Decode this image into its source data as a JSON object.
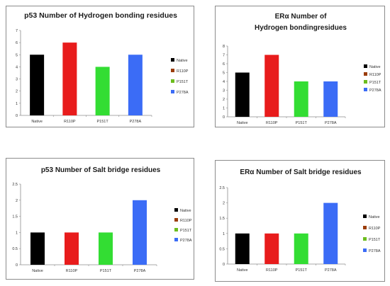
{
  "chart_data": [
    {
      "type": "bar",
      "title": "p53 Number of Hydrogen bonding residues",
      "title_lines": [
        "p53 Number of Hydrogen bonding residues"
      ],
      "categories": [
        "Native",
        "R110P",
        "P151T",
        "P278A"
      ],
      "values": [
        5,
        6,
        4,
        5
      ],
      "colors": [
        "#000000",
        "#e81c1c",
        "#33dd33",
        "#3b6cf6"
      ],
      "legend": [
        "Native",
        "R110P",
        "P151T",
        "P278A"
      ],
      "legend_colors": [
        "#000000",
        "#9b3d0a",
        "#6cbd1e",
        "#3b6cf6"
      ],
      "ylim": [
        0,
        7
      ],
      "yticks": [
        0,
        1,
        2,
        3,
        4,
        5,
        6,
        7
      ],
      "legend_position": "right",
      "grid": false
    },
    {
      "type": "bar",
      "title": "ERα Number of Hydrogen bondingresidues",
      "title_lines": [
        "ERα Number of",
        "Hydrogen bondingresidues"
      ],
      "categories": [
        "Native",
        "R110P",
        "P151T",
        "P278A"
      ],
      "values": [
        5,
        7,
        4,
        4
      ],
      "colors": [
        "#000000",
        "#e81c1c",
        "#33dd33",
        "#3b6cf6"
      ],
      "legend": [
        "Native",
        "R110P",
        "P151T",
        "P278A"
      ],
      "legend_colors": [
        "#000000",
        "#9b3d0a",
        "#6cbd1e",
        "#3b6cf6"
      ],
      "ylim": [
        0,
        8
      ],
      "yticks": [
        0,
        1,
        2,
        3,
        4,
        5,
        6,
        7,
        8
      ],
      "legend_position": "right",
      "grid": false
    },
    {
      "type": "bar",
      "title": "p53 Number of Salt bridge residues",
      "title_lines": [
        "p53 Number of Salt bridge residues"
      ],
      "categories": [
        "Native",
        "R110P",
        "P151T",
        "P278A"
      ],
      "values": [
        1,
        1,
        1,
        2
      ],
      "colors": [
        "#000000",
        "#e81c1c",
        "#33dd33",
        "#3b6cf6"
      ],
      "legend": [
        "Native",
        "R110P",
        "P151T",
        "P278A"
      ],
      "legend_colors": [
        "#000000",
        "#9b3d0a",
        "#6cbd1e",
        "#3b6cf6"
      ],
      "ylim": [
        0,
        2.5
      ],
      "yticks": [
        0,
        0.5,
        1,
        1.5,
        2,
        2.5
      ],
      "legend_position": "right",
      "grid": false
    },
    {
      "type": "bar",
      "title": "ERα Number of Salt bridge residues",
      "title_lines": [
        "ERα Number of Salt bridge residues"
      ],
      "categories": [
        "Native",
        "R110P",
        "P151T",
        "P278A"
      ],
      "values": [
        1,
        1,
        1,
        2
      ],
      "colors": [
        "#000000",
        "#e81c1c",
        "#33dd33",
        "#3b6cf6"
      ],
      "legend": [
        "Native",
        "R110P",
        "P151T",
        "P278A"
      ],
      "legend_colors": [
        "#000000",
        "#9b3d0a",
        "#6cbd1e",
        "#3b6cf6"
      ],
      "ylim": [
        0,
        2.5
      ],
      "yticks": [
        0,
        0.5,
        1,
        1.5,
        2,
        2.5
      ],
      "legend_position": "right",
      "grid": false
    }
  ]
}
